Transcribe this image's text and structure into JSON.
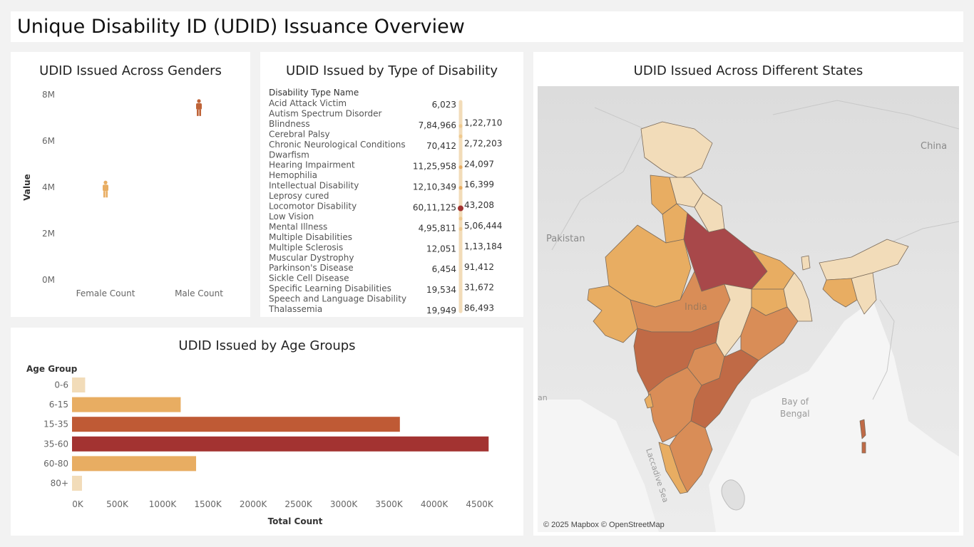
{
  "page": {
    "title": "Unique Disability ID (UDID) Issuance Overview"
  },
  "chart_data": [
    {
      "type": "scatter",
      "title": "UDID Issued Across Genders",
      "ylabel": "Value",
      "categories": [
        "Female Count",
        "Male Count"
      ],
      "values": [
        3900000,
        7420000
      ],
      "ylim": [
        0,
        8000000
      ],
      "yticks": [
        "0M",
        "2M",
        "4M",
        "6M",
        "8M"
      ],
      "ytick_values": [
        0,
        2000000,
        4000000,
        6000000,
        8000000
      ],
      "colors": [
        "#e8ad62",
        "#bf6438"
      ],
      "marker": "person-icon"
    },
    {
      "type": "scatter",
      "title": "UDID Issued by Type of Disability",
      "column_header": "Disability Type Name",
      "categories": [
        "Acid Attack Victim",
        "Autism Spectrum Disorder",
        "Blindness",
        "Cerebral Palsy",
        "Chronic Neurological Conditions",
        "Dwarfism",
        "Hearing Impairment",
        "Hemophilia",
        "Intellectual Disability",
        "Leprosy cured",
        "Locomotor Disability",
        "Low Vision",
        "Mental Illness",
        "Multiple Disabilities",
        "Multiple Sclerosis",
        "Muscular Dystrophy",
        "Parkinson's Disease",
        "Sickle Cell Disease",
        "Specific Learning Disabilities",
        "Speech and Language Disability",
        "Thalassemia"
      ],
      "values": [
        6023,
        122710,
        784966,
        272203,
        70412,
        24097,
        1125958,
        16399,
        1210349,
        43208,
        6011125,
        506444,
        495811,
        113184,
        12051,
        91412,
        6454,
        31672,
        19534,
        86493,
        19949
      ],
      "labels": [
        "6,023",
        "1,22,710",
        "7,84,966",
        "2,72,203",
        "70,412",
        "24,097",
        "11,25,958",
        "16,399",
        "12,10,349",
        "43,208",
        "60,11,125",
        "5,06,444",
        "4,95,811",
        "1,13,184",
        "12,051",
        "91,412",
        "6,454",
        "31,672",
        "19,534",
        "86,493",
        "19,949"
      ]
    },
    {
      "type": "bar",
      "orientation": "horizontal",
      "title": "UDID Issued by Age Groups",
      "column_header": "Age Group",
      "xlabel": "Total Count",
      "categories": [
        "0-6",
        "6-15",
        "15-35",
        "35-60",
        "60-80",
        "80+"
      ],
      "values": [
        145000,
        1200000,
        3620000,
        4600000,
        1370000,
        110000
      ],
      "xlim": [
        0,
        4700000
      ],
      "xticks": [
        "0K",
        "500K",
        "1000K",
        "1500K",
        "2000K",
        "2500K",
        "3000K",
        "3500K",
        "4000K",
        "4500K"
      ],
      "xtick_values": [
        0,
        500000,
        1000000,
        1500000,
        2000000,
        2500000,
        3000000,
        3500000,
        4000000,
        4500000
      ],
      "colors": [
        "#f2dcb9",
        "#e8ad62",
        "#bf5a35",
        "#a33331",
        "#e8ad62",
        "#f2dcb9"
      ]
    }
  ],
  "map": {
    "title": "UDID Issued Across Different States",
    "place_labels": {
      "pakistan": "Pakistan",
      "china": "China",
      "india": "India",
      "bay": "Bay of",
      "bay2": "Bengal",
      "sea": "Laccadive Sea",
      "arabian": "an"
    },
    "attribution": "© 2025 Mapbox © OpenStreetMap",
    "colors": {
      "light": "#f2dcb9",
      "mid": "#e8ad62",
      "orange": "#d98d57",
      "dark": "#c06a46",
      "darkest": "#a8484a"
    }
  }
}
